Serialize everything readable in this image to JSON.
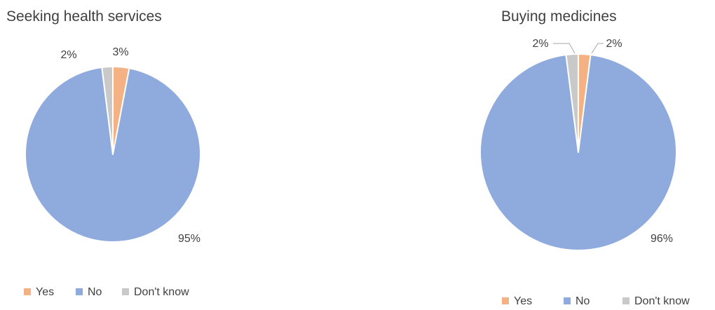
{
  "colors": {
    "yes": "#F4B183",
    "no": "#8FAADC",
    "dont_know": "#C9C9C9"
  },
  "chart_data": [
    {
      "type": "pie",
      "title": "Seeking health services",
      "categories": [
        "Yes",
        "No",
        "Don't know"
      ],
      "values": [
        3,
        95,
        2
      ],
      "labels": [
        "3%",
        "95%",
        "2%"
      ],
      "legend": "bottom"
    },
    {
      "type": "pie",
      "title": "Buying medicines",
      "categories": [
        "Yes",
        "No",
        "Don't know"
      ],
      "values": [
        2,
        96,
        2
      ],
      "labels": [
        "2%",
        "96%",
        "2%"
      ],
      "legend": "bottom"
    }
  ]
}
